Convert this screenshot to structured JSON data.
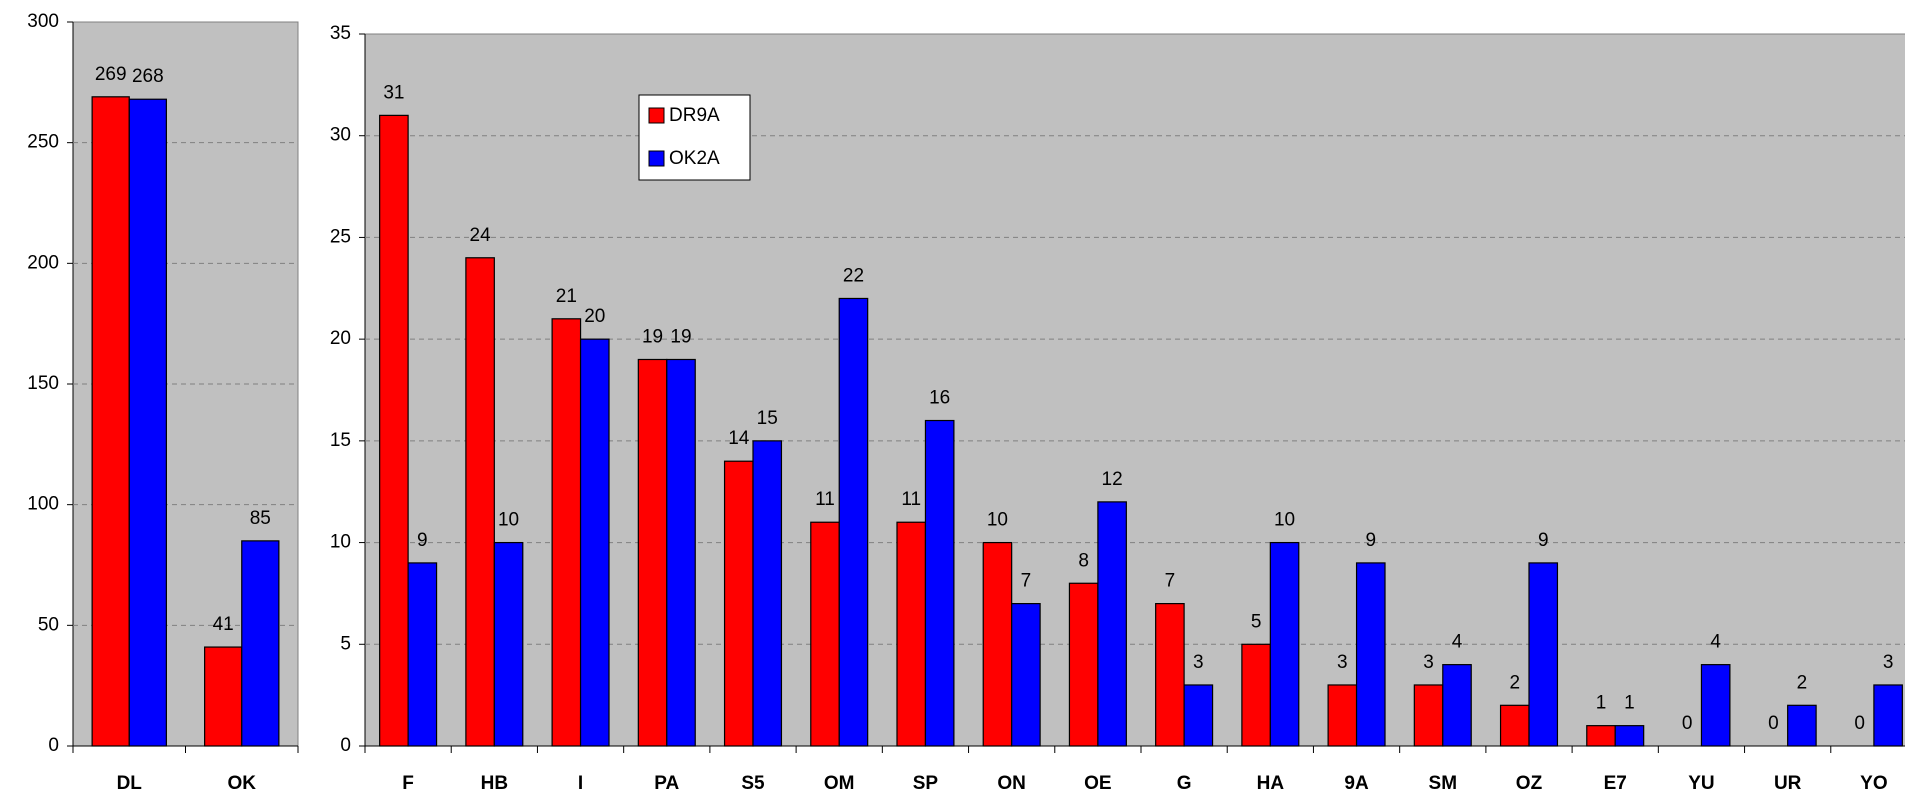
{
  "chart_data": [
    {
      "type": "bar",
      "categories": [
        "DL",
        "OK"
      ],
      "series": [
        {
          "name": "DR9A",
          "color": "#ff0000",
          "values": [
            269,
            41
          ]
        },
        {
          "name": "OK2A",
          "color": "#0000ff",
          "values": [
            268,
            85
          ]
        }
      ],
      "ylim": [
        0,
        300
      ],
      "yticks": [
        0,
        50,
        100,
        150,
        200,
        250,
        300
      ],
      "grid": true
    },
    {
      "type": "bar",
      "categories": [
        "F",
        "HB",
        "I",
        "PA",
        "S5",
        "OM",
        "SP",
        "ON",
        "OE",
        "G",
        "HA",
        "9A",
        "SM",
        "OZ",
        "E7",
        "YU",
        "UR",
        "YO"
      ],
      "series": [
        {
          "name": "DR9A",
          "color": "#ff0000",
          "values": [
            31,
            24,
            21,
            19,
            14,
            11,
            11,
            10,
            8,
            7,
            5,
            3,
            3,
            2,
            1,
            0,
            0,
            0
          ]
        },
        {
          "name": "OK2A",
          "color": "#0000ff",
          "values": [
            9,
            10,
            20,
            19,
            15,
            22,
            16,
            7,
            12,
            3,
            10,
            9,
            4,
            9,
            1,
            4,
            2,
            3
          ]
        }
      ],
      "ylim": [
        0,
        35
      ],
      "yticks": [
        0,
        5,
        10,
        15,
        20,
        25,
        30,
        35
      ],
      "grid": true,
      "legend": "upper left"
    }
  ]
}
